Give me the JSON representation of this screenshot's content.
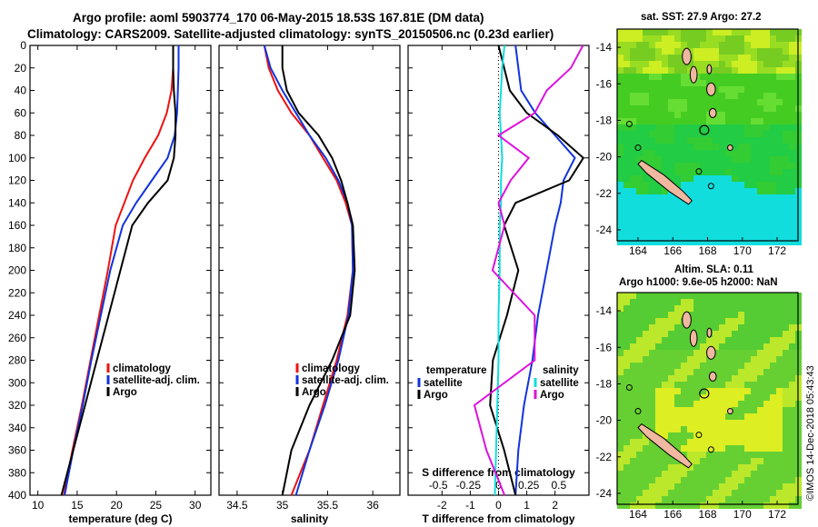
{
  "titles": {
    "line1": "Argo profile: aoml 5903774_170 06-May-2015 18.53S 167.81E (DM data)",
    "line2": "Climatology: CARS2009. Satellite-adjusted climatology: synTS_20150506.nc (0.23d earlier)"
  },
  "colors": {
    "climatology": "#ee1111",
    "satellite": "#1133dd",
    "argo": "#000000",
    "sat_s": "#11dddd",
    "argo_s": "#dd11dd"
  },
  "depth_ticks": [
    0,
    20,
    40,
    60,
    80,
    100,
    120,
    140,
    160,
    180,
    200,
    220,
    240,
    260,
    280,
    300,
    320,
    340,
    360,
    380,
    400
  ],
  "chart_data": [
    {
      "id": "temperature",
      "type": "line",
      "xlabel": "temperature (deg C)",
      "ylabel": "",
      "xlim": [
        9,
        32
      ],
      "ylim": [
        400,
        0
      ],
      "xticks": [
        10,
        15,
        20,
        25,
        30
      ],
      "legend": {
        "placement": "center-right",
        "labels": [
          "climatology",
          "satellite-adj. clim.",
          "Argo"
        ]
      },
      "series": [
        {
          "name": "climatology",
          "color_key": "climatology",
          "x": [
            27.2,
            27.2,
            27.0,
            26.4,
            25.3,
            23.6,
            22.1,
            21.0,
            19.9,
            18.9,
            17.8,
            16.7,
            15.6,
            14.4,
            13.3
          ],
          "y": [
            0,
            20,
            40,
            60,
            80,
            100,
            120,
            140,
            160,
            200,
            240,
            280,
            320,
            360,
            400
          ]
        },
        {
          "name": "satellite-adj. clim.",
          "color_key": "satellite",
          "x": [
            27.9,
            27.9,
            27.8,
            27.7,
            27.4,
            26.5,
            24.5,
            22.5,
            20.8,
            19.2,
            18.0,
            16.8,
            15.7,
            14.5,
            13.4
          ],
          "y": [
            0,
            20,
            40,
            60,
            80,
            100,
            120,
            140,
            160,
            200,
            240,
            280,
            320,
            360,
            400
          ]
        },
        {
          "name": "Argo",
          "color_key": "argo",
          "x": [
            27.2,
            27.2,
            27.3,
            27.5,
            27.5,
            27.3,
            26.5,
            24.0,
            22.0,
            20.5,
            19.0,
            17.5,
            16.0,
            14.5,
            13.0
          ],
          "y": [
            0,
            20,
            40,
            60,
            80,
            100,
            120,
            140,
            160,
            200,
            240,
            280,
            320,
            360,
            400
          ]
        }
      ]
    },
    {
      "id": "salinity",
      "type": "line",
      "xlabel": "salinity",
      "ylabel": "",
      "xlim": [
        34.3,
        36.3
      ],
      "ylim": [
        400,
        0
      ],
      "xticks": [
        34.5,
        35,
        35.5,
        36
      ],
      "legend": {
        "placement": "center-right",
        "labels": [
          "climatology",
          "satellite-adj. clim.",
          "Argo"
        ]
      },
      "series": [
        {
          "name": "climatology",
          "color_key": "climatology",
          "x": [
            34.8,
            34.85,
            34.95,
            35.1,
            35.3,
            35.45,
            35.6,
            35.7,
            35.77,
            35.78,
            35.72,
            35.6,
            35.45,
            35.3,
            35.1
          ],
          "y": [
            0,
            20,
            40,
            60,
            80,
            100,
            120,
            140,
            160,
            200,
            240,
            280,
            320,
            360,
            400
          ]
        },
        {
          "name": "satellite-adj. clim.",
          "color_key": "satellite",
          "x": [
            34.8,
            34.87,
            35.0,
            35.15,
            35.3,
            35.48,
            35.62,
            35.72,
            35.77,
            35.78,
            35.73,
            35.62,
            35.47,
            35.3,
            35.15
          ],
          "y": [
            0,
            20,
            40,
            60,
            80,
            100,
            120,
            140,
            160,
            200,
            240,
            280,
            320,
            360,
            400
          ]
        },
        {
          "name": "Argo",
          "color_key": "argo",
          "x": [
            35.0,
            35.0,
            35.05,
            35.18,
            35.4,
            35.55,
            35.65,
            35.72,
            35.78,
            35.8,
            35.75,
            35.55,
            35.3,
            35.1,
            35.0
          ],
          "y": [
            0,
            20,
            40,
            60,
            80,
            100,
            120,
            140,
            160,
            200,
            240,
            280,
            320,
            360,
            400
          ]
        }
      ]
    },
    {
      "id": "difference",
      "type": "line",
      "xlabel": "T difference from climatology",
      "xlabel_top": "S difference from climatology",
      "xlim": [
        -3.2,
        3.2
      ],
      "ylim": [
        400,
        0
      ],
      "xticks": [
        -2,
        -1,
        0,
        1,
        2
      ],
      "xticks_s": [
        {
          "value": -0.5,
          "label": "-0.5"
        },
        {
          "value": -0.25,
          "label": "-0.25"
        },
        {
          "value": 0,
          "label": "0"
        },
        {
          "value": 0.25,
          "label": "0.25"
        },
        {
          "value": 0.5,
          "label": "0.5"
        }
      ],
      "legend": {
        "placement": "center",
        "temperature_title": "temperature",
        "salinity_title": "salinity",
        "labels": [
          "satellite",
          "Argo"
        ]
      },
      "series": [
        {
          "name": "T satellite",
          "color_key": "satellite",
          "x": [
            0.6,
            0.7,
            0.8,
            1.3,
            2.0,
            2.7,
            2.3,
            2.2,
            2.0,
            1.7,
            1.4,
            1.2,
            0.9,
            0.7,
            0.6
          ],
          "y": [
            0,
            20,
            40,
            60,
            80,
            100,
            120,
            140,
            160,
            200,
            240,
            280,
            320,
            360,
            400
          ]
        },
        {
          "name": "T Argo",
          "color_key": "argo",
          "x": [
            0.0,
            0.2,
            0.4,
            1.0,
            2.1,
            3.0,
            2.5,
            0.6,
            0.2,
            0.7,
            0.3,
            -0.2,
            -0.3,
            0.2,
            0.6
          ],
          "y": [
            0,
            20,
            40,
            60,
            80,
            100,
            120,
            140,
            160,
            200,
            240,
            280,
            320,
            360,
            400
          ]
        },
        {
          "name": "S satellite",
          "color_key": "sat_s",
          "x": [
            0.05,
            0.03,
            0.02,
            0.01,
            0.02,
            0.03,
            0.02,
            0.02,
            0.01,
            0.01,
            0.0,
            0.0,
            -0.01,
            -0.02,
            -0.03
          ],
          "y": [
            0,
            20,
            40,
            60,
            80,
            100,
            120,
            140,
            160,
            200,
            240,
            280,
            320,
            360,
            400
          ]
        },
        {
          "name": "S Argo",
          "color_key": "argo_s",
          "x": [
            0.7,
            0.6,
            0.4,
            0.3,
            0.0,
            0.25,
            0.1,
            0.0,
            0.05,
            -0.05,
            0.3,
            0.3,
            -0.2,
            -0.1,
            0.05
          ],
          "y": [
            0,
            20,
            40,
            60,
            80,
            100,
            120,
            140,
            160,
            200,
            240,
            280,
            320,
            360,
            400
          ]
        }
      ]
    }
  ],
  "maps": {
    "top": {
      "title": "sat. SST: 27.9 Argo: 27.2",
      "xticks": [
        164,
        166,
        168,
        170,
        172
      ],
      "yticks": [
        -14,
        -16,
        -18,
        -20,
        -22,
        -24
      ],
      "lon_range": [
        162.8,
        173.2
      ],
      "lat_range": [
        -24.6,
        -13
      ]
    },
    "bottom": {
      "title_line1": "Altim. SLA: 0.11",
      "title_line2": "Argo h1000: 9.6e-05 h2000: NaN",
      "xticks": [
        164,
        166,
        168,
        170,
        172
      ],
      "yticks": [
        -14,
        -16,
        -18,
        -20,
        -22,
        -24
      ],
      "lon_range": [
        162.8,
        173.2
      ],
      "lat_range": [
        -24.6,
        -13
      ]
    },
    "argo_position": {
      "lon": 167.81,
      "lat": -18.53
    }
  },
  "credit": "©IMOS 14-Dec-2018 05:43:43"
}
